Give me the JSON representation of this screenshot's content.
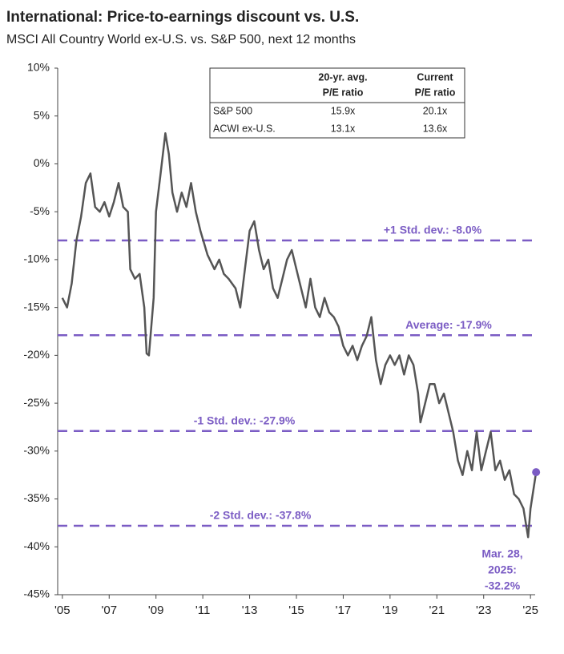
{
  "chart_data": {
    "type": "line",
    "title": "International: Price-to-earnings discount vs. U.S.",
    "subtitle": "MSCI All Country World ex-U.S. vs. S&P 500, next 12 months",
    "xlim": [
      2004.8,
      2025.2
    ],
    "xticks": [
      {
        "value": 2005,
        "label": "'05"
      },
      {
        "value": 2007,
        "label": "'07"
      },
      {
        "value": 2009,
        "label": "'09"
      },
      {
        "value": 2011,
        "label": "'11"
      },
      {
        "value": 2013,
        "label": "'13"
      },
      {
        "value": 2015,
        "label": "'15"
      },
      {
        "value": 2017,
        "label": "'17"
      },
      {
        "value": 2019,
        "label": "'19"
      },
      {
        "value": 2021,
        "label": "'21"
      },
      {
        "value": 2023,
        "label": "'23"
      },
      {
        "value": 2025,
        "label": "'25"
      }
    ],
    "ylim": [
      -45,
      10
    ],
    "yticks": [
      {
        "value": 10,
        "label": "10%"
      },
      {
        "value": 5,
        "label": "5%"
      },
      {
        "value": 0,
        "label": "0%"
      },
      {
        "value": -5,
        "label": "-5%"
      },
      {
        "value": -10,
        "label": "-10%"
      },
      {
        "value": -15,
        "label": "-15%"
      },
      {
        "value": -20,
        "label": "-20%"
      },
      {
        "value": -25,
        "label": "-25%"
      },
      {
        "value": -30,
        "label": "-30%"
      },
      {
        "value": -35,
        "label": "-35%"
      },
      {
        "value": -40,
        "label": "-40%"
      },
      {
        "value": -45,
        "label": "-45%"
      }
    ],
    "x": [
      2005.0,
      2005.2,
      2005.4,
      2005.6,
      2005.8,
      2006.0,
      2006.2,
      2006.4,
      2006.6,
      2006.8,
      2007.0,
      2007.2,
      2007.4,
      2007.6,
      2007.8,
      2007.9,
      2008.1,
      2008.3,
      2008.5,
      2008.6,
      2008.7,
      2008.9,
      2009.0,
      2009.2,
      2009.4,
      2009.55,
      2009.7,
      2009.9,
      2010.1,
      2010.3,
      2010.5,
      2010.7,
      2010.9,
      2011.2,
      2011.5,
      2011.7,
      2011.9,
      2012.1,
      2012.4,
      2012.6,
      2012.8,
      2013.0,
      2013.2,
      2013.4,
      2013.6,
      2013.8,
      2014.0,
      2014.2,
      2014.4,
      2014.6,
      2014.8,
      2015.0,
      2015.2,
      2015.4,
      2015.6,
      2015.8,
      2016.0,
      2016.2,
      2016.4,
      2016.6,
      2016.8,
      2017.0,
      2017.2,
      2017.4,
      2017.6,
      2017.8,
      2018.0,
      2018.2,
      2018.4,
      2018.6,
      2018.8,
      2019.0,
      2019.2,
      2019.4,
      2019.6,
      2019.8,
      2020.0,
      2020.2,
      2020.3,
      2020.5,
      2020.7,
      2020.9,
      2021.1,
      2021.3,
      2021.5,
      2021.7,
      2021.9,
      2022.1,
      2022.3,
      2022.5,
      2022.7,
      2022.9,
      2023.1,
      2023.3,
      2023.5,
      2023.7,
      2023.9,
      2024.1,
      2024.3,
      2024.5,
      2024.7,
      2024.9,
      2025.0,
      2025.24
    ],
    "series": [
      {
        "name": "P/E discount",
        "color": "#555555",
        "values": [
          -14,
          -15,
          -12.5,
          -8,
          -5.5,
          -2,
          -1,
          -4.5,
          -5,
          -4,
          -5.5,
          -4,
          -2,
          -4.5,
          -5,
          -11,
          -12,
          -11.5,
          -15,
          -19.8,
          -20,
          -14,
          -5,
          -1,
          3.2,
          1,
          -3,
          -5,
          -3,
          -4.5,
          -2,
          -5,
          -7,
          -9.5,
          -11,
          -10,
          -11.5,
          -12,
          -13,
          -15,
          -11,
          -7,
          -6,
          -9,
          -11,
          -10,
          -13,
          -14,
          -12,
          -10,
          -9,
          -11,
          -13,
          -15,
          -12,
          -15,
          -16,
          -14,
          -15.5,
          -16,
          -17,
          -19,
          -20,
          -19,
          -20.5,
          -19,
          -18,
          -16,
          -20.5,
          -23,
          -21,
          -20,
          -21,
          -20,
          -22,
          -20,
          -21,
          -24,
          -27,
          -25,
          -23,
          -23,
          -25,
          -24,
          -26,
          -28,
          -31,
          -32.5,
          -30,
          -32,
          -28,
          -32,
          -30,
          -28,
          -32,
          -31,
          -33,
          -32,
          -34.5,
          -35,
          -36,
          -39,
          -36,
          -32.2
        ]
      }
    ],
    "end_marker_color": "#7b5cc4",
    "reference_color": "#7b5cc4",
    "reference_lines": [
      {
        "label": "+1 Std. dev.: -8.0%",
        "value": -8.0
      },
      {
        "label": "Average: -17.9%",
        "value": -17.9
      },
      {
        "label": "-1 Std. dev.: -27.9%",
        "value": -27.9
      },
      {
        "label": "-2 Std. dev.: -37.8%",
        "value": -37.8
      }
    ],
    "annotation": [
      "Mar. 28,",
      "2025:",
      "-32.2%"
    ],
    "table": {
      "header": [
        [
          "20-yr. avg.",
          "P/E ratio"
        ],
        [
          "Current",
          "P/E ratio"
        ]
      ],
      "rows": [
        [
          "S&P 500",
          "15.9x",
          "20.1x"
        ],
        [
          "ACWI ex-U.S.",
          "13.1x",
          "13.6x"
        ]
      ]
    }
  }
}
